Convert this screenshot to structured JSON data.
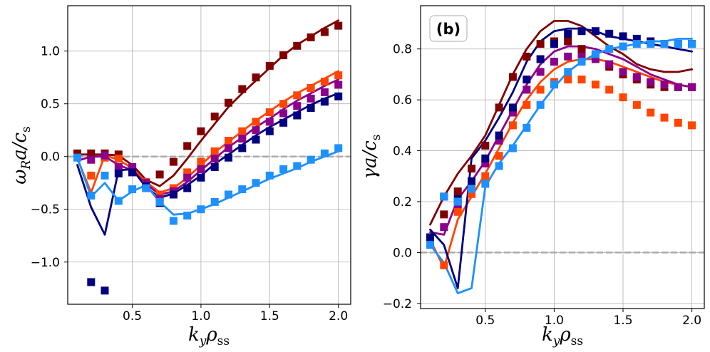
{
  "chart_data": [
    {
      "type": "line",
      "panel": "left",
      "title": "",
      "xlabel": "k_y ρ_ss",
      "ylabel": "ω_R a / c_s",
      "xlim": [
        0.03,
        2.09
      ],
      "ylim": [
        -1.4,
        1.43
      ],
      "xticks": [
        0.5,
        1.0,
        1.5,
        2.0
      ],
      "xtick_labels": [
        "0.5",
        "1.0",
        "1.5",
        "2.0"
      ],
      "yticks": [
        -1.0,
        -0.5,
        0.0,
        0.5,
        1.0
      ],
      "ytick_labels": [
        "−1.0",
        "−0.5",
        "0.0",
        "0.5",
        "1.0"
      ],
      "grid": true,
      "reference_line": {
        "y": 0.0,
        "style": "dashed",
        "color": "#aaaaaa"
      },
      "series": [
        {
          "name": "dark red",
          "color": "#800000",
          "line": {
            "x": [
              0.1,
              0.2,
              0.3,
              0.4,
              0.5,
              0.6,
              0.7,
              0.8,
              0.9,
              1.0,
              1.1,
              1.2,
              1.3,
              1.4,
              1.5,
              1.6,
              1.7,
              1.8,
              1.9,
              2.0
            ],
            "y": [
              0.02,
              0.02,
              0.02,
              0.01,
              -0.08,
              -0.22,
              -0.28,
              -0.18,
              -0.02,
              0.15,
              0.31,
              0.47,
              0.6,
              0.72,
              0.84,
              0.96,
              1.06,
              1.14,
              1.22,
              1.29
            ]
          },
          "markers": {
            "x": [
              0.1,
              0.2,
              0.3,
              0.4,
              0.5,
              0.6,
              0.7,
              0.8,
              0.9,
              1.0,
              1.1,
              1.2,
              1.3,
              1.4,
              1.5,
              1.6,
              1.7,
              1.8,
              1.9,
              2.0
            ],
            "y": [
              0.03,
              0.03,
              0.03,
              0.02,
              -0.14,
              -0.25,
              -0.17,
              -0.05,
              0.1,
              0.24,
              0.38,
              0.51,
              0.64,
              0.75,
              0.86,
              0.96,
              1.05,
              1.13,
              1.18,
              1.24
            ]
          }
        },
        {
          "name": "orange-red",
          "color": "#ff4500",
          "line": {
            "x": [
              0.1,
              0.2,
              0.3,
              0.4,
              0.5,
              0.6,
              0.7,
              0.8,
              0.9,
              1.0,
              1.1,
              1.2,
              1.3,
              1.4,
              1.5,
              1.6,
              1.7,
              1.8,
              1.9,
              2.0
            ],
            "y": [
              -0.02,
              -0.34,
              0.01,
              -0.03,
              -0.11,
              -0.24,
              -0.34,
              -0.3,
              -0.2,
              -0.08,
              0.04,
              0.14,
              0.24,
              0.34,
              0.43,
              0.52,
              0.6,
              0.67,
              0.74,
              0.81
            ]
          },
          "markers": {
            "x": [
              0.2,
              0.3,
              0.4,
              0.5,
              0.6,
              0.7,
              0.8,
              0.9,
              1.0,
              1.1,
              1.2,
              1.3,
              1.4,
              1.5,
              1.6,
              1.7,
              1.8,
              1.9,
              2.0
            ],
            "y": [
              -0.18,
              -0.01,
              -0.02,
              -0.1,
              -0.24,
              -0.36,
              -0.3,
              -0.15,
              -0.05,
              0.05,
              0.15,
              0.24,
              0.33,
              0.42,
              0.5,
              0.58,
              0.65,
              0.71,
              0.77
            ]
          }
        },
        {
          "name": "purple",
          "color": "#8b008b",
          "line": {
            "x": [
              0.1,
              0.2,
              0.3,
              0.4,
              0.5,
              0.6,
              0.7,
              0.8,
              0.9,
              1.0,
              1.1,
              1.2,
              1.3,
              1.4,
              1.5,
              1.6,
              1.7,
              1.8,
              1.9,
              2.0
            ],
            "y": [
              -0.04,
              0.0,
              0.0,
              -0.08,
              -0.13,
              -0.26,
              -0.36,
              -0.33,
              -0.24,
              -0.13,
              -0.02,
              0.09,
              0.18,
              0.28,
              0.36,
              0.45,
              0.53,
              0.6,
              0.67,
              0.73
            ]
          },
          "markers": {
            "x": [
              0.2,
              0.3,
              0.4,
              0.5,
              0.6,
              0.7,
              0.8,
              0.9,
              1.0,
              1.1,
              1.2,
              1.3,
              1.4,
              1.5,
              1.6,
              1.7,
              1.8,
              1.9,
              2.0
            ],
            "y": [
              -0.03,
              0.01,
              -0.1,
              -0.1,
              -0.25,
              -0.4,
              -0.33,
              -0.2,
              -0.12,
              -0.02,
              0.08,
              0.17,
              0.25,
              0.33,
              0.41,
              0.48,
              0.55,
              0.61,
              0.68
            ]
          }
        },
        {
          "name": "navy",
          "color": "#000080",
          "line": {
            "x": [
              0.1,
              0.2,
              0.3,
              0.4,
              0.5,
              0.6,
              0.7,
              0.8,
              0.9,
              1.0,
              1.1,
              1.2,
              1.3,
              1.4,
              1.5,
              1.6,
              1.7,
              1.8,
              1.9,
              2.0
            ],
            "y": [
              -0.08,
              -0.48,
              -0.74,
              -0.13,
              -0.12,
              -0.29,
              -0.39,
              -0.35,
              -0.27,
              -0.18,
              -0.07,
              0.02,
              0.11,
              0.2,
              0.28,
              0.35,
              0.42,
              0.49,
              0.55,
              0.6
            ]
          },
          "markers": {
            "x": [
              0.2,
              0.3,
              0.4,
              0.5,
              0.6,
              0.7,
              0.8,
              0.9,
              1.0,
              1.1,
              1.2,
              1.3,
              1.4,
              1.5,
              1.6,
              1.7,
              1.8,
              1.9,
              2.0
            ],
            "y": [
              -1.19,
              -1.27,
              -0.16,
              -0.15,
              -0.28,
              -0.44,
              -0.36,
              -0.3,
              -0.2,
              -0.1,
              -0.01,
              0.08,
              0.16,
              0.24,
              0.32,
              0.39,
              0.46,
              0.52,
              0.57
            ]
          }
        },
        {
          "name": "light blue",
          "color": "#1e90ff",
          "line": {
            "x": [
              0.1,
              0.2,
              0.3,
              0.4,
              0.5,
              0.6,
              0.7,
              0.8,
              0.9,
              1.0,
              1.1,
              1.2,
              1.3,
              1.4,
              1.5,
              1.6,
              1.7,
              1.8,
              1.9,
              2.0
            ],
            "y": [
              -0.01,
              -0.38,
              -0.25,
              -0.42,
              -0.33,
              -0.27,
              -0.43,
              -0.55,
              -0.54,
              -0.5,
              -0.45,
              -0.39,
              -0.33,
              -0.27,
              -0.21,
              -0.16,
              -0.11,
              -0.05,
              0.0,
              0.05
            ]
          },
          "markers": {
            "x": [
              0.1,
              0.2,
              0.3,
              0.4,
              0.5,
              0.6,
              0.7,
              0.8,
              0.9,
              1.0,
              1.1,
              1.2,
              1.3,
              1.4,
              1.5,
              1.6,
              1.7,
              1.8,
              1.9,
              2.0
            ],
            "y": [
              -0.01,
              -0.37,
              -0.18,
              -0.42,
              -0.31,
              -0.3,
              -0.43,
              -0.61,
              -0.56,
              -0.5,
              -0.43,
              -0.36,
              -0.31,
              -0.25,
              -0.18,
              -0.12,
              -0.09,
              -0.03,
              0.03,
              0.08
            ]
          }
        }
      ]
    },
    {
      "type": "line",
      "panel": "right",
      "title": "",
      "panel_label": "(b)",
      "xlabel": "k_y ρ_ss",
      "ylabel": "γ a / c_s",
      "xlim": [
        0.03,
        2.09
      ],
      "ylim": [
        -0.22,
        0.97
      ],
      "xticks": [
        0.5,
        1.0,
        1.5,
        2.0
      ],
      "xtick_labels": [
        "0.5",
        "1.0",
        "1.5",
        "2.0"
      ],
      "yticks": [
        -0.2,
        0.0,
        0.2,
        0.4,
        0.6,
        0.8
      ],
      "ytick_labels": [
        "−0.2",
        "0.0",
        "0.2",
        "0.4",
        "0.6",
        "0.8"
      ],
      "grid": true,
      "reference_line": {
        "y": 0.0,
        "style": "dashed",
        "color": "#aaaaaa"
      },
      "series": [
        {
          "name": "dark red",
          "color": "#800000",
          "line": {
            "x": [
              0.1,
              0.2,
              0.3,
              0.4,
              0.5,
              0.6,
              0.7,
              0.8,
              0.9,
              1.0,
              1.1,
              1.2,
              1.3,
              1.4,
              1.5,
              1.6,
              1.7,
              1.8,
              1.9,
              2.0
            ],
            "y": [
              0.11,
              0.22,
              0.31,
              0.38,
              0.46,
              0.58,
              0.7,
              0.8,
              0.87,
              0.91,
              0.91,
              0.89,
              0.85,
              0.81,
              0.78,
              0.74,
              0.72,
              0.71,
              0.71,
              0.72
            ]
          },
          "markers": {
            "x": [
              0.1,
              0.2,
              0.3,
              0.4,
              0.5,
              0.6,
              0.7,
              0.8,
              0.9,
              1.0,
              1.1,
              1.2,
              1.3,
              1.4,
              1.5,
              1.6,
              1.7,
              1.8,
              1.9,
              2.0
            ],
            "y": [
              0.06,
              0.15,
              0.24,
              0.33,
              0.42,
              0.57,
              0.69,
              0.77,
              0.82,
              0.83,
              0.83,
              0.8,
              0.77,
              0.73,
              0.7,
              0.68,
              0.66,
              0.65,
              0.65,
              0.65
            ]
          }
        },
        {
          "name": "orange-red",
          "color": "#ff4500",
          "line": {
            "x": [
              0.1,
              0.2,
              0.3,
              0.4,
              0.5,
              0.6,
              0.7,
              0.8,
              0.9,
              1.0,
              1.1,
              1.2,
              1.3,
              1.4,
              1.5,
              1.6,
              1.7,
              1.8,
              1.9,
              2.0
            ],
            "y": [
              0.05,
              -0.06,
              0.13,
              0.22,
              0.31,
              0.41,
              0.51,
              0.6,
              0.67,
              0.72,
              0.75,
              0.76,
              0.76,
              0.75,
              0.73,
              0.71,
              0.69,
              0.67,
              0.66,
              0.65
            ]
          },
          "markers": {
            "x": [
              0.1,
              0.2,
              0.3,
              0.4,
              0.5,
              0.6,
              0.7,
              0.8,
              0.9,
              1.0,
              1.1,
              1.2,
              1.3,
              1.4,
              1.5,
              1.6,
              1.7,
              1.8,
              1.9,
              2.0
            ],
            "y": [
              0.04,
              -0.05,
              0.16,
              0.23,
              0.3,
              0.38,
              0.5,
              0.58,
              0.64,
              0.67,
              0.68,
              0.68,
              0.66,
              0.64,
              0.61,
              0.58,
              0.55,
              0.53,
              0.51,
              0.5
            ]
          }
        },
        {
          "name": "purple",
          "color": "#8b008b",
          "line": {
            "x": [
              0.1,
              0.2,
              0.3,
              0.4,
              0.5,
              0.6,
              0.7,
              0.8,
              0.9,
              1.0,
              1.1,
              1.2,
              1.3,
              1.4,
              1.5,
              1.6,
              1.7,
              1.8,
              1.9,
              2.0
            ],
            "y": [
              0.08,
              0.07,
              0.21,
              0.28,
              0.36,
              0.46,
              0.56,
              0.66,
              0.74,
              0.79,
              0.81,
              0.81,
              0.8,
              0.78,
              0.76,
              0.73,
              0.7,
              0.68,
              0.66,
              0.65
            ]
          },
          "markers": {
            "x": [
              0.1,
              0.2,
              0.3,
              0.4,
              0.5,
              0.6,
              0.7,
              0.8,
              0.9,
              1.0,
              1.1,
              1.2,
              1.3,
              1.4,
              1.5,
              1.6,
              1.7,
              1.8,
              1.9,
              2.0
            ],
            "y": [
              0.05,
              0.1,
              0.19,
              0.27,
              0.35,
              0.44,
              0.55,
              0.64,
              0.71,
              0.75,
              0.77,
              0.77,
              0.76,
              0.74,
              0.71,
              0.69,
              0.67,
              0.66,
              0.65,
              0.65
            ]
          }
        },
        {
          "name": "navy",
          "color": "#000080",
          "line": {
            "x": [
              0.1,
              0.2,
              0.3,
              0.4,
              0.5,
              0.6,
              0.7,
              0.8,
              0.9,
              1.0,
              1.1,
              1.2,
              1.3,
              1.4,
              1.5,
              1.6,
              1.7,
              1.8,
              1.9,
              2.0
            ],
            "y": [
              0.09,
              0.03,
              -0.14,
              0.37,
              0.44,
              0.53,
              0.63,
              0.75,
              0.83,
              0.87,
              0.88,
              0.88,
              0.87,
              0.85,
              0.84,
              0.83,
              0.82,
              0.81,
              0.8,
              0.79
            ]
          },
          "markers": {
            "x": [
              0.1,
              0.2,
              0.3,
              0.4,
              0.5,
              0.6,
              0.7,
              0.8,
              0.9,
              1.0,
              1.1,
              1.2,
              1.3,
              1.4,
              1.5,
              1.6,
              1.7,
              1.8,
              1.9,
              2.0
            ],
            "y": [
              0.06,
              0.22,
              0.21,
              0.28,
              0.37,
              0.46,
              0.57,
              0.68,
              0.76,
              0.82,
              0.86,
              0.87,
              0.87,
              0.86,
              0.85,
              0.84,
              0.83,
              0.82,
              0.82,
              0.82
            ]
          }
        },
        {
          "name": "light blue",
          "color": "#1e90ff",
          "line": {
            "x": [
              0.1,
              0.2,
              0.3,
              0.4,
              0.5,
              0.6,
              0.7,
              0.8,
              0.9,
              1.0,
              1.1,
              1.2,
              1.3,
              1.4,
              1.5,
              1.6,
              1.7,
              1.8,
              1.9,
              2.0
            ],
            "y": [
              0.03,
              -0.04,
              -0.16,
              -0.14,
              0.26,
              0.35,
              0.42,
              0.5,
              0.58,
              0.65,
              0.71,
              0.75,
              0.78,
              0.8,
              0.81,
              0.82,
              0.83,
              0.83,
              0.84,
              0.84
            ]
          },
          "markers": {
            "x": [
              0.1,
              0.2,
              0.3,
              0.4,
              0.5,
              0.6,
              0.7,
              0.8,
              0.9,
              1.0,
              1.1,
              1.2,
              1.3,
              1.4,
              1.5,
              1.6,
              1.7,
              1.8,
              1.9,
              2.0
            ],
            "y": [
              0.03,
              0.22,
              0.2,
              0.25,
              0.27,
              0.34,
              0.41,
              0.49,
              0.58,
              0.66,
              0.71,
              0.75,
              0.78,
              0.8,
              0.81,
              0.82,
              0.82,
              0.82,
              0.82,
              0.82
            ]
          }
        }
      ]
    }
  ]
}
